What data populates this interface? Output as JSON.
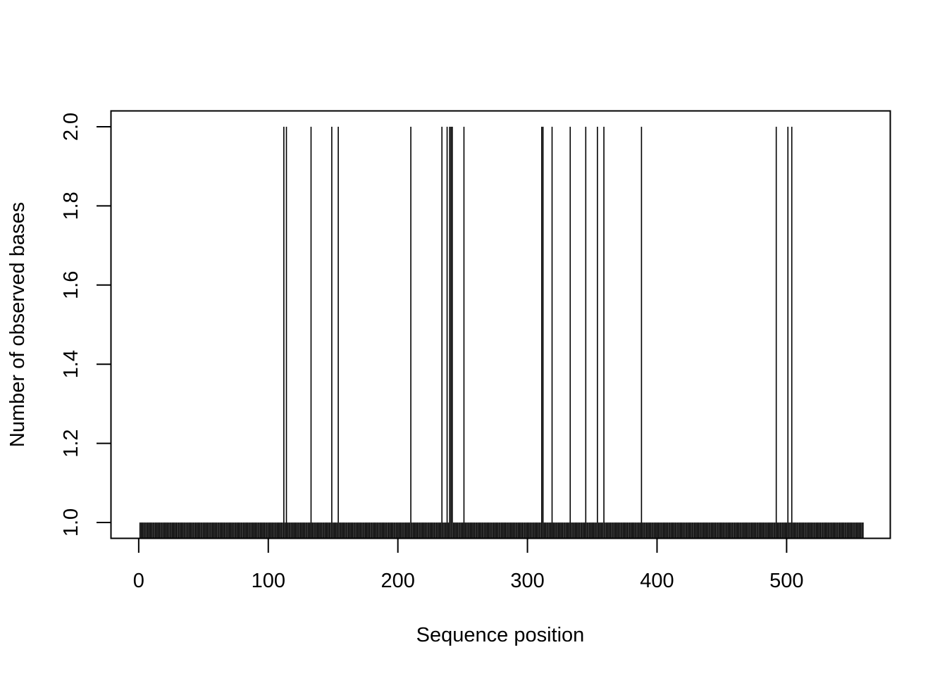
{
  "chart_data": {
    "type": "bar",
    "style": "histogram-like vertical lines (one per position)",
    "title": "",
    "xlabel": "Sequence position",
    "ylabel": "Number of observed bases",
    "xlim": [
      -21.4,
      580
    ],
    "ylim": [
      0.96,
      2.04
    ],
    "x_ticks": [
      0,
      100,
      200,
      300,
      400,
      500
    ],
    "x_tick_labels": [
      "0",
      "100",
      "200",
      "300",
      "400",
      "500"
    ],
    "y_ticks": [
      1.0,
      1.2,
      1.4,
      1.6,
      1.8,
      2.0
    ],
    "y_tick_labels": [
      "1.0",
      "1.2",
      "1.4",
      "1.6",
      "1.8",
      "2.0"
    ],
    "x_range": [
      1,
      559
    ],
    "baseline_value": 1,
    "positions_value_2": [
      112,
      114,
      133,
      149,
      154,
      210,
      234,
      238,
      240,
      241,
      242,
      251,
      311,
      312,
      319,
      333,
      345,
      354,
      359,
      388,
      492,
      501,
      504
    ],
    "grid": false,
    "legend": "none"
  }
}
